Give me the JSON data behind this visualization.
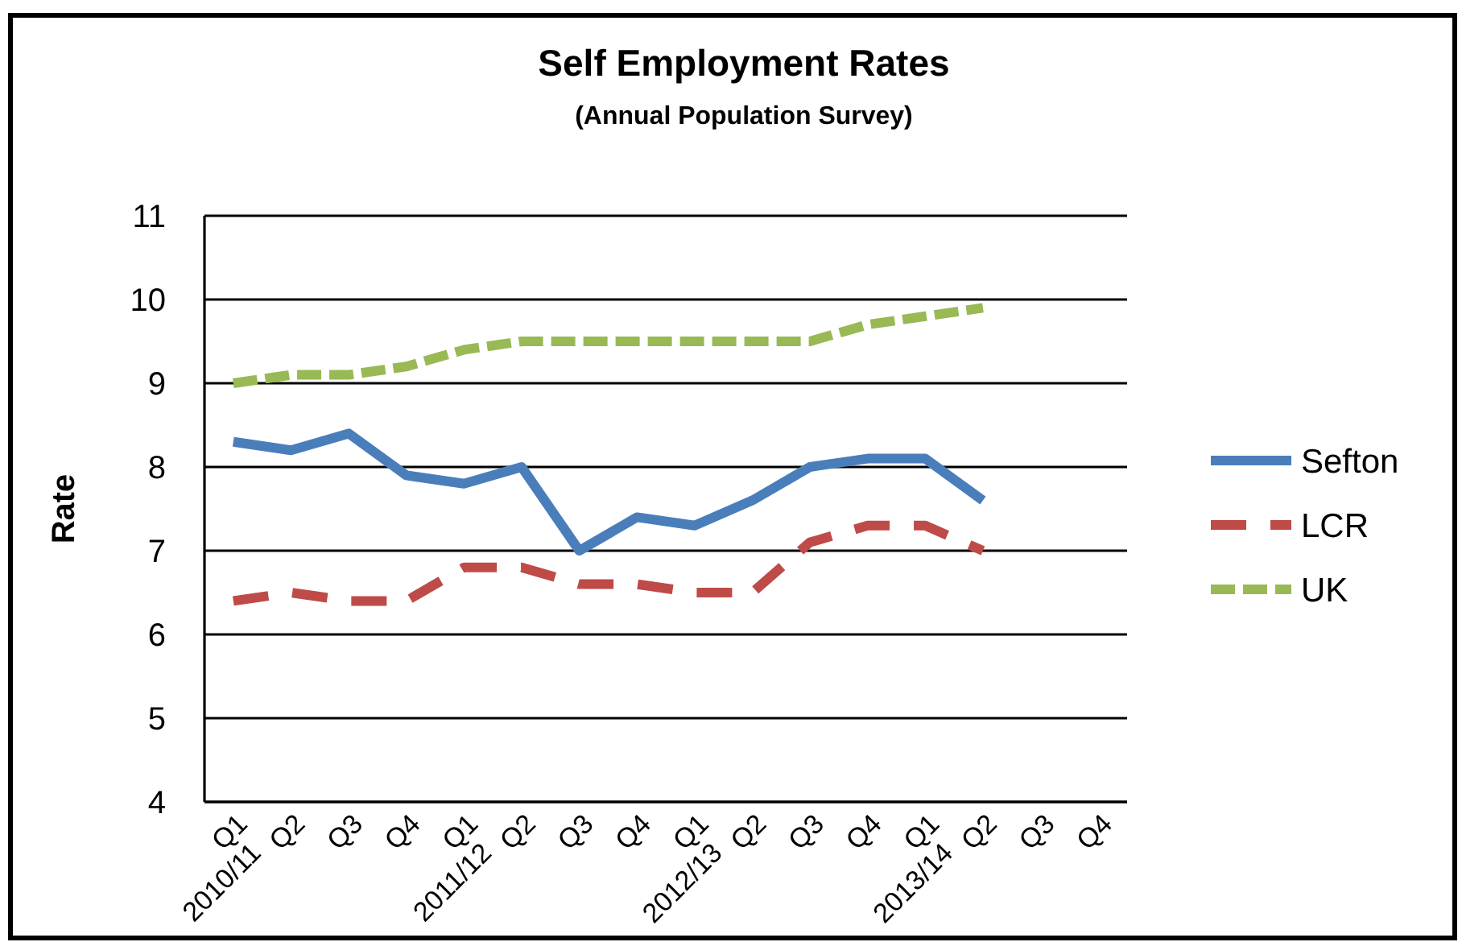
{
  "chart_data": {
    "type": "line",
    "title": "Self Employment Rates",
    "subtitle": "(Annual Population Survey)",
    "ylabel": "Rate",
    "categories": [
      "Q1\n2010/11",
      "Q2",
      "Q3",
      "Q4",
      "Q1\n2011/12",
      "Q2",
      "Q3",
      "Q4",
      "Q1\n2012/13",
      "Q2",
      "Q3",
      "Q4",
      "Q1\n2013/14",
      "Q2",
      "Q3",
      "Q4"
    ],
    "series": [
      {
        "name": "Sefton",
        "color": "#4a7ebb",
        "line_style": "solid",
        "values": [
          8.3,
          8.2,
          8.4,
          7.9,
          7.8,
          8.0,
          7.0,
          7.4,
          7.3,
          7.6,
          8.0,
          8.1,
          8.1,
          7.6,
          null,
          null
        ]
      },
      {
        "name": "LCR",
        "color": "#be4b48",
        "line_style": "dashed",
        "values": [
          6.4,
          6.5,
          6.4,
          6.4,
          6.8,
          6.8,
          6.6,
          6.6,
          6.5,
          6.5,
          7.1,
          7.3,
          7.3,
          7.0,
          null,
          null
        ]
      },
      {
        "name": "UK",
        "color": "#98b954",
        "line_style": "dashed",
        "values": [
          9.0,
          9.1,
          9.1,
          9.2,
          9.4,
          9.5,
          9.5,
          9.5,
          9.5,
          9.5,
          9.5,
          9.7,
          9.8,
          9.9,
          null,
          null
        ]
      }
    ],
    "ylim": [
      4,
      11
    ],
    "yticks": [
      4,
      5,
      6,
      7,
      8,
      9,
      10,
      11
    ],
    "grid": "y",
    "legend": "right"
  }
}
